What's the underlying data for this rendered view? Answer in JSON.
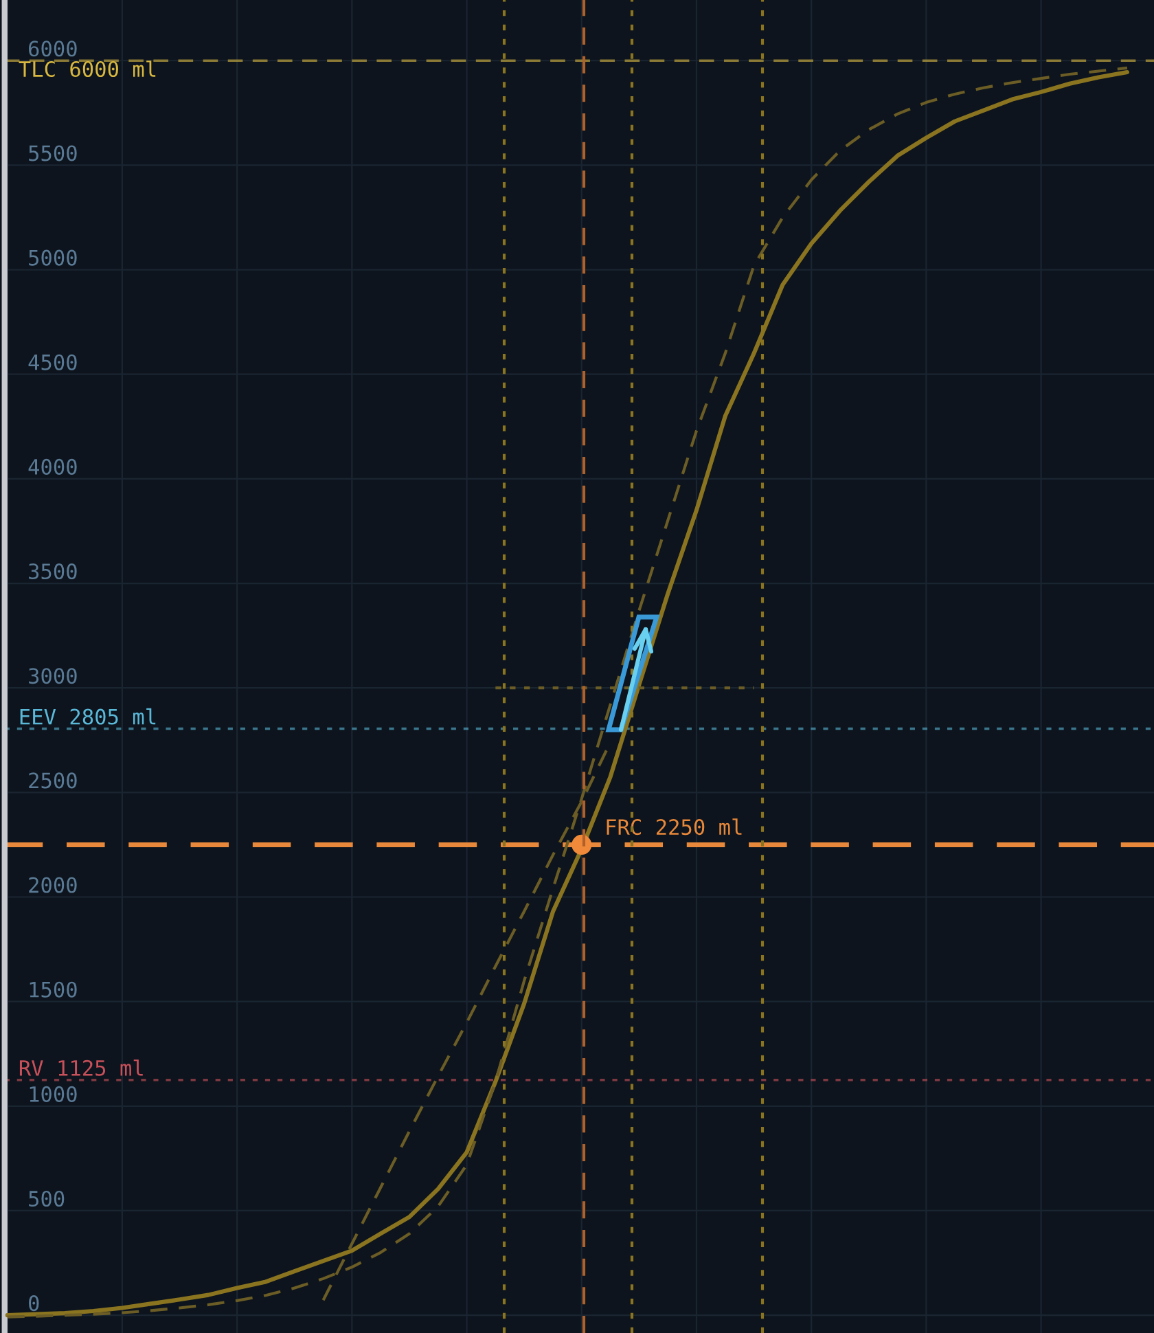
{
  "chart_data": {
    "type": "line",
    "categories": [
      null,
      null,
      null,
      null,
      null,
      null,
      null,
      null,
      null,
      null,
      null,
      null,
      null,
      null,
      null,
      null,
      null,
      null,
      null,
      null,
      null,
      null,
      null,
      null,
      null,
      null,
      null,
      null,
      null,
      null,
      null,
      null,
      null,
      null,
      null,
      null,
      null,
      null,
      null,
      null
    ],
    "series": [
      {
        "color": "#8a7420",
        "line_style": "solid",
        "values": [
          0,
          5,
          10,
          20,
          35,
          55,
          75,
          97,
          130,
          160,
          210,
          260,
          309,
          390,
          470,
          604,
          780,
          1117,
          1491,
          1930,
          2230,
          2575,
          3015,
          3450,
          3850,
          4300,
          4600,
          4928,
          5125,
          5283,
          5420,
          5545,
          5631,
          5710,
          5762,
          5815,
          5850,
          5890,
          5920,
          5945
        ]
      },
      {
        "color": "#6b5d25",
        "line_style": "dashed",
        "values": [
          -8,
          -5,
          0,
          5,
          12,
          22,
          35,
          50,
          70,
          95,
          130,
          175,
          230,
          300,
          390,
          520,
          720,
          1117,
          1600,
          2040,
          2470,
          2920,
          3370,
          3800,
          4230,
          4600,
          5020,
          5250,
          5430,
          5570,
          5670,
          5745,
          5800,
          5840,
          5870,
          5895,
          5915,
          5935,
          5950,
          5965
        ]
      },
      {
        "color": "#6b5d25",
        "line_style": "dashed",
        "values": [
          null,
          null,
          null,
          null,
          null,
          null,
          null,
          null,
          null,
          null,
          null,
          72,
          342,
          611,
          880,
          1143,
          1400,
          1669,
          1932,
          2201,
          2457,
          2740,
          null,
          null,
          null,
          null,
          null,
          null,
          null,
          null,
          null,
          null,
          null,
          null,
          null,
          null,
          null,
          null,
          null,
          null
        ]
      },
      {
        "color": "#6b5d25",
        "line_style": "dotted",
        "values": [
          null,
          null,
          null,
          null,
          null,
          null,
          null,
          null,
          null,
          null,
          null,
          null,
          null,
          null,
          null,
          null,
          null,
          3000,
          3000,
          3000,
          3000,
          3000,
          3000,
          3000,
          3000,
          3000,
          3000,
          null,
          null,
          null,
          null,
          null,
          null,
          null,
          null,
          null,
          null,
          null,
          null,
          null
        ]
      },
      {
        "type": "scatter",
        "color": "#f08a3a",
        "marker": "circle",
        "values": [
          null,
          null,
          null,
          null,
          null,
          null,
          null,
          null,
          null,
          null,
          null,
          null,
          null,
          null,
          null,
          null,
          null,
          null,
          null,
          null,
          2250,
          null,
          null,
          null,
          null,
          null,
          null,
          null,
          null,
          null,
          null,
          null,
          null,
          null,
          null,
          null,
          null,
          null,
          null,
          null
        ]
      }
    ],
    "ylim": [
      -85,
      6290
    ],
    "yticks": [
      0,
      500,
      1000,
      1500,
      2000,
      2500,
      3000,
      3500,
      4000,
      4500,
      5000,
      5500,
      6000
    ],
    "tick_labels": "y",
    "grid": true,
    "legend": false,
    "ref_lines": [
      {
        "axis": "y",
        "value": 6000,
        "label": "TLC 6000 ml",
        "color": "#d8b840",
        "line_style": "dashed"
      },
      {
        "axis": "y",
        "value": 2805,
        "label": "EEV 2805 ml",
        "color": "#5ab8d8",
        "line_style": "dotted"
      },
      {
        "axis": "y",
        "value": 2250,
        "label": "FRC 2250 ml",
        "color": "#e8883a",
        "line_style": "dashed"
      },
      {
        "axis": "y",
        "value": 1125,
        "label": "RV 1125 ml",
        "color": "#c8505a",
        "line_style": "dotted"
      }
    ]
  }
}
